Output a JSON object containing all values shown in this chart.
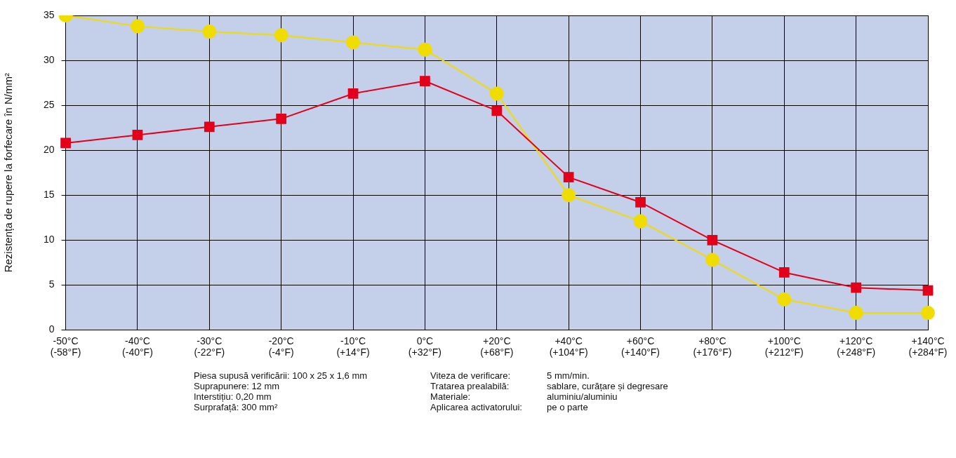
{
  "chart_data": {
    "type": "line",
    "ylabel": "Rezistența de rupere la forfecare în N/mm²",
    "categories": [
      "-50°C\n(-58°F)",
      "-40°C\n(-40°F)",
      "-30°C\n(-22°F)",
      "-20°C\n(-4°F)",
      "-10°C\n(+14°F)",
      "0°C\n(+32°F)",
      "+20°C\n(+68°F)",
      "+40°C\n(+104°F)",
      "+60°C\n(+140°F)",
      "+80°C\n(+176°F)",
      "+100°C\n(+212°F)",
      "+120°C\n(+248°F)",
      "+140°C\n(+284°F)"
    ],
    "series": [
      {
        "color": "#e2001a",
        "marker": "square",
        "values": [
          20.8,
          21.7,
          22.6,
          23.5,
          26.3,
          27.7,
          24.4,
          17.0,
          14.2,
          10.0,
          6.4,
          4.7,
          4.4
        ]
      },
      {
        "color": "#f0dc00",
        "marker": "circle",
        "values": [
          35.0,
          33.8,
          33.2,
          32.8,
          32.0,
          31.2,
          26.3,
          15.0,
          12.1,
          7.8,
          3.4,
          1.9,
          1.9
        ]
      }
    ],
    "ylim": [
      0,
      35
    ],
    "yticks": [
      0,
      5,
      10,
      15,
      20,
      25,
      30,
      35
    ],
    "grid": true,
    "legend": false,
    "line_style": "solid",
    "annotations": [
      "Piesa supusă verificării: 100 x 25 x 1,6 mm",
      "Suprapunere: 12 mm",
      "Interstițiu: 0,20 mm",
      "Surprafață: 300 mm²",
      "Viteza de verificare: 5 mm/min.",
      "Tratarea prealabilă: sablare, curățare și degresare",
      "Materiale: aluminiu/aluminiu",
      "Aplicarea activatorului: pe o parte"
    ]
  }
}
